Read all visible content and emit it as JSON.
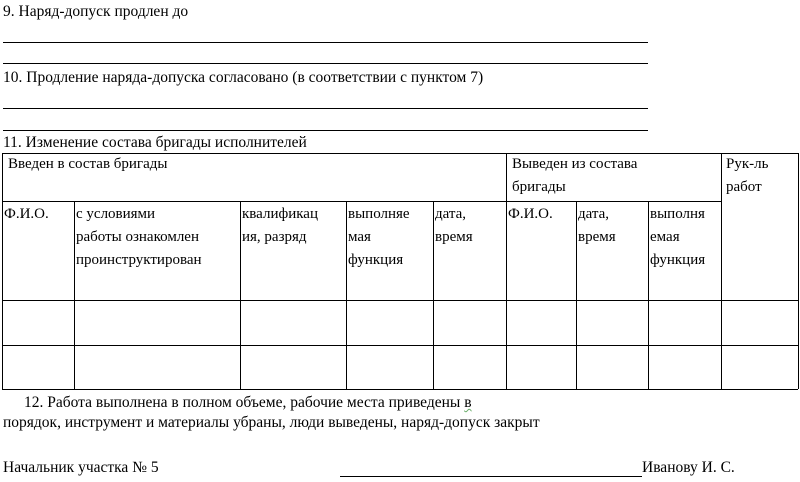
{
  "item9": "9. Наряд-допуск продлен до",
  "item10": "10. Продление наряда-допуска согласовано (в соответствии  с пунктом 7)",
  "item11": "11. Изменение состава бригады исполнителей",
  "table": {
    "group_in": "Введен в состав бригады",
    "group_out": "Выведен из состава\nбригады",
    "supervisor": "Рук-ль\nработ",
    "columns": [
      "Ф.И.О.",
      "с условиями\nработы ознакомлен\nпроинструктирован",
      "квалификац\nия,  разряд",
      "выполняе\nмая\nфункция",
      "дата,\nвремя",
      "Ф.И.О.",
      "дата,\nвремя",
      "выполня\nемая\nфункция"
    ],
    "rows": [
      [
        "",
        "",
        "",
        "",
        "",
        "",
        "",
        "",
        ""
      ],
      [
        "",
        "",
        "",
        "",
        "",
        "",
        "",
        "",
        ""
      ]
    ]
  },
  "item12_line1": "12.  Работа  выполнена  в  полном  объеме,  рабочие  места  приведены",
  "item12_word": "в",
  "item12_line2": "порядок, инструмент и материалы убраны, люди выведены, наряд-допуск закрыт",
  "signature": {
    "role": "Начальник участка № 5",
    "name": "Иванову И. С."
  }
}
